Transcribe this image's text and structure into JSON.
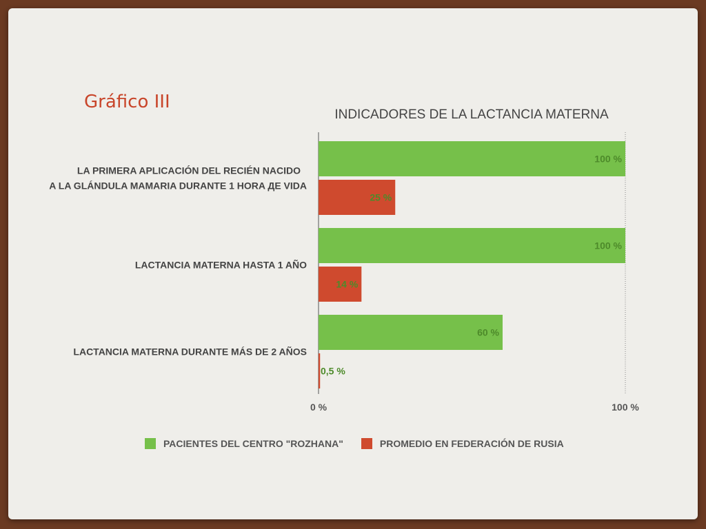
{
  "slide": {
    "heading": "Gráfico III"
  },
  "chart_data": {
    "type": "bar",
    "orientation": "horizontal",
    "title": "INDICADORES DE LA LACTANCIA MATERNA",
    "categories": [
      [
        "LA PRIMERA APLICACIÓN DEL RECIÉN NACIDO",
        "A LA GLÁNDULA MAMARIA DURANTE 1 HORA ДЕ VIDA"
      ],
      [
        "LACTANCIA MATERNA HASTA 1 AÑO"
      ],
      [
        "LACTANCIA MATERNA DURANTE MÁS DE 2 AÑOS"
      ]
    ],
    "series": [
      {
        "name": "PACIENTES DEL CENTRO \"ROZHANA\"",
        "color": "#76c04a",
        "values": [
          100,
          100,
          60
        ],
        "labels": [
          "100 %",
          "100 %",
          "60 %"
        ]
      },
      {
        "name": "PROMEDIO EN FEDERACIÓN DE RUSIA",
        "color": "#cf4a2e",
        "values": [
          25,
          14,
          0.5
        ],
        "labels": [
          "25 %",
          "14 %",
          "0,5 %"
        ]
      }
    ],
    "xlim": [
      0,
      100
    ],
    "x_ticks": [
      0,
      100
    ],
    "x_tick_labels": [
      "0 %",
      "100 %"
    ],
    "grid": false,
    "reference_line_at": 100,
    "legend_position": "bottom",
    "label_color": "#4d8a2a"
  }
}
